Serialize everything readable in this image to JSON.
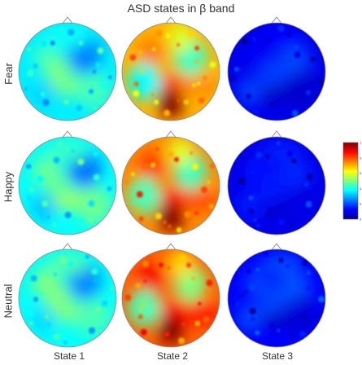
{
  "title": "ASD states in β band",
  "rows": [
    "Fear",
    "Happy",
    "Neutral"
  ],
  "columns": [
    "State 1",
    "State 2",
    "State 3"
  ],
  "colorbar": {
    "ticks": [
      "1",
      "0.8",
      "0.6",
      "0.4",
      "0.2",
      "0"
    ],
    "colors": [
      "#00008f",
      "#0000ff",
      "#0080ff",
      "#00ffff",
      "#80ff80",
      "#ffff00",
      "#ff8000",
      "#ff0000",
      "#800000"
    ]
  },
  "panels": [
    {
      "name": "fear-state-1",
      "base": 0.36
    },
    {
      "name": "fear-state-2",
      "base": 0.7
    },
    {
      "name": "fear-state-3",
      "base": 0.1
    },
    {
      "name": "happy-state-1",
      "base": 0.38
    },
    {
      "name": "happy-state-2",
      "base": 0.74
    },
    {
      "name": "happy-state-3",
      "base": 0.1
    },
    {
      "name": "neutral-state-1",
      "base": 0.38
    },
    {
      "name": "neutral-state-2",
      "base": 0.78
    },
    {
      "name": "neutral-state-3",
      "base": 0.12
    }
  ]
}
